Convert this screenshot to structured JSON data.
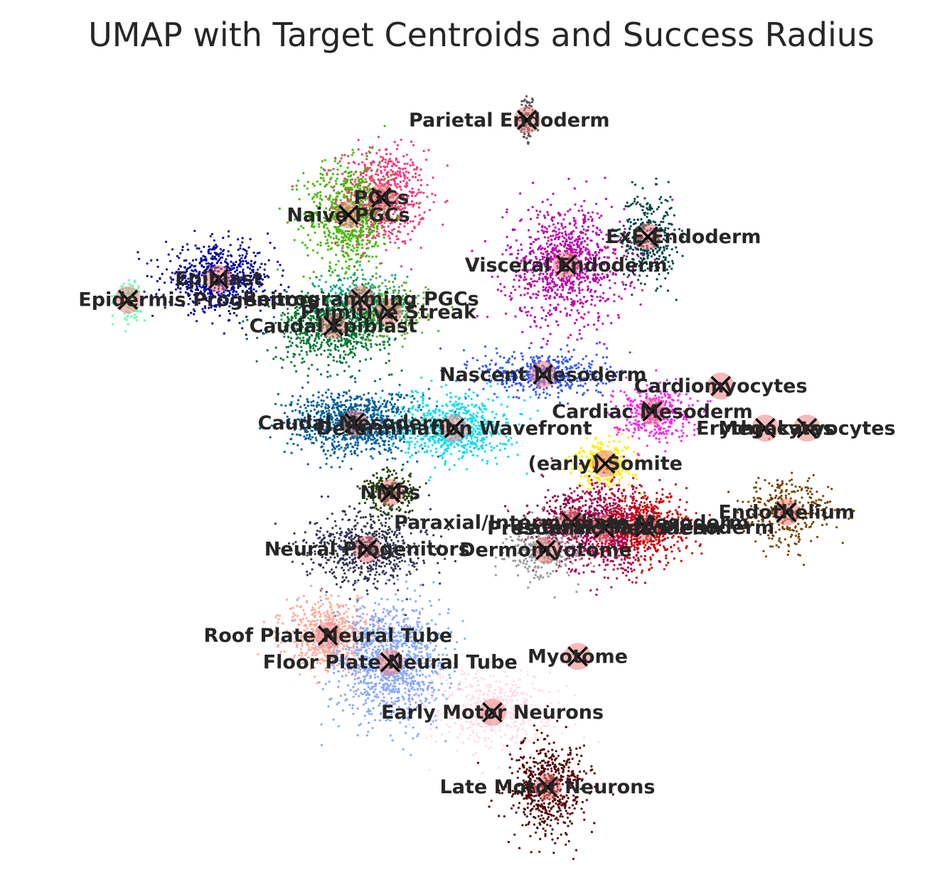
{
  "chart_data": {
    "type": "scatter",
    "title": "UMAP with Target Centroids and Success Radius",
    "xlabel": "",
    "ylabel": "",
    "axes_visible": false,
    "grid": false,
    "legend": "none",
    "xlim": [
      0,
      100
    ],
    "ylim": [
      0,
      100
    ],
    "centroid_marker": "x",
    "centroid_color": "#000000",
    "radius_color": "#f08080",
    "clusters": [
      {
        "name": "Parietal Endoderm",
        "x": 56.9,
        "y": 96.2,
        "color": "#555555",
        "spread": [
          0.8,
          3.5
        ],
        "n": 80,
        "label_dx": -2.0
      },
      {
        "name": "PGCs",
        "x": 40.5,
        "y": 85.5,
        "color": "#ff3377",
        "spread": [
          4.5,
          6.0
        ],
        "n": 700,
        "label_dx": 0.0
      },
      {
        "name": "Naive PGCs",
        "x": 36.8,
        "y": 83.1,
        "color": "#44bb00",
        "spread": [
          4.5,
          6.5
        ],
        "n": 650,
        "label_dx": 0.0
      },
      {
        "name": "ExE Endoderm",
        "x": 70.5,
        "y": 80.1,
        "color": "#004444",
        "spread": [
          2.8,
          5.5
        ],
        "n": 350,
        "label_dx": 4.0
      },
      {
        "name": "Visceral Endoderm",
        "x": 61.3,
        "y": 76.2,
        "color": "#bb00aa",
        "spread": [
          6.0,
          7.5
        ],
        "n": 900,
        "label_dx": 0.0
      },
      {
        "name": "Epiblast",
        "x": 22.2,
        "y": 74.3,
        "color": "#000099",
        "spread": [
          5.5,
          4.0
        ],
        "n": 650,
        "label_dx": 0.0
      },
      {
        "name": "Epidermis Progenitors",
        "x": 12.0,
        "y": 71.4,
        "color": "#66ffaa",
        "spread": [
          1.3,
          2.5
        ],
        "n": 120,
        "label_dx": 8.0
      },
      {
        "name": "Reprogramming PGCs",
        "x": 38.2,
        "y": 71.5,
        "color": "#11aa88",
        "spread": [
          4.5,
          3.5
        ],
        "n": 250,
        "label_dx": 0.0
      },
      {
        "name": "Primitive Streak",
        "x": 41.3,
        "y": 69.7,
        "color": "#66aa33",
        "spread": [
          4.0,
          3.5
        ],
        "n": 250,
        "label_dx": 0.0
      },
      {
        "name": "Caudal Epiblast",
        "x": 35.1,
        "y": 67.8,
        "color": "#007733",
        "spread": [
          6.0,
          4.5
        ],
        "n": 750,
        "label_dx": 0.0
      },
      {
        "name": "Nascent Mesoderm",
        "x": 58.7,
        "y": 61.1,
        "color": "#3355ff",
        "spread": [
          6.5,
          3.0
        ],
        "n": 450,
        "label_dx": 0.0
      },
      {
        "name": "Cardiomyocytes",
        "x": 78.7,
        "y": 59.5,
        "color": "#ff99bb",
        "spread": [
          0.3,
          0.3
        ],
        "n": 4,
        "label_dx": 0.0
      },
      {
        "name": "Cardiac Mesoderm",
        "x": 71.0,
        "y": 56.0,
        "color": "#ff22ee",
        "spread": [
          4.0,
          3.5
        ],
        "n": 350,
        "label_dx": 0.0
      },
      {
        "name": "Erythrocytes",
        "x": 83.7,
        "y": 53.7,
        "color": "#aa8844",
        "spread": [
          0.8,
          0.8
        ],
        "n": 15,
        "label_dx": 0.0
      },
      {
        "name": "Megakaryocytes",
        "x": 88.4,
        "y": 53.7,
        "color": "#ff99bb",
        "spread": [
          0.3,
          0.3
        ],
        "n": 3,
        "label_dx": 0.0
      },
      {
        "name": "Caudal Mesoderm",
        "x": 37.5,
        "y": 54.4,
        "color": "#005f99",
        "spread": [
          6.5,
          4.0
        ],
        "n": 950,
        "label_dx": 0.0
      },
      {
        "name": "Determination Wavefront",
        "x": 48.7,
        "y": 53.7,
        "color": "#11ddee",
        "spread": [
          5.5,
          4.0
        ],
        "n": 650,
        "label_dx": 0.0
      },
      {
        "name": "(early) Somite",
        "x": 65.7,
        "y": 48.8,
        "color": "#ffee00",
        "spread": [
          3.0,
          3.0
        ],
        "n": 300,
        "label_dx": 0.0
      },
      {
        "name": "NMPs",
        "x": 41.5,
        "y": 44.8,
        "color": "#224400",
        "spread": [
          3.0,
          3.0
        ],
        "n": 220,
        "label_dx": 0.0
      },
      {
        "name": "Endothelium",
        "x": 86.1,
        "y": 42.1,
        "color": "#774400",
        "spread": [
          4.5,
          4.5
        ],
        "n": 320,
        "label_dx": 0.0
      },
      {
        "name": "Paraxial/Intermediate Mesoderm",
        "x": 61.9,
        "y": 40.7,
        "color": "#770033",
        "spread": [
          5.0,
          3.0
        ],
        "n": 300,
        "label_dx": 0.0
      },
      {
        "name": "Presomitic Mesoderm",
        "x": 65.6,
        "y": 39.9,
        "color": "#aa0055",
        "spread": [
          5.0,
          5.5
        ],
        "n": 750,
        "label_dx": 0.0
      },
      {
        "name": "Lateral Plate Mesoderm",
        "x": 70.2,
        "y": 40.0,
        "color": "#cc0000",
        "spread": [
          4.5,
          4.5
        ],
        "n": 550,
        "label_dx": 0.0
      },
      {
        "name": "Neural Progenitors",
        "x": 38.9,
        "y": 37.0,
        "color": "#333355",
        "spread": [
          6.0,
          4.5
        ],
        "n": 650,
        "label_dx": 0.0
      },
      {
        "name": "Dermomyotome",
        "x": 59.0,
        "y": 36.9,
        "color": "#999999",
        "spread": [
          4.0,
          3.5
        ],
        "n": 300,
        "label_dx": 0.0
      },
      {
        "name": "Roof Plate Neural Tube",
        "x": 34.5,
        "y": 25.1,
        "color": "#ffaa99",
        "spread": [
          4.5,
          4.5
        ],
        "n": 550,
        "label_dx": 0.0
      },
      {
        "name": "Myotome",
        "x": 62.6,
        "y": 22.2,
        "color": "#ff99bb",
        "spread": [
          0.3,
          0.3
        ],
        "n": 4,
        "label_dx": 0.0
      },
      {
        "name": "Floor Plate Neural Tube",
        "x": 41.5,
        "y": 21.4,
        "color": "#88aaff",
        "spread": [
          5.5,
          7.5
        ],
        "n": 1100,
        "label_dx": 0.0
      },
      {
        "name": "Early Motor Neurons",
        "x": 53.0,
        "y": 14.5,
        "color": "#ffdde6",
        "spread": [
          7.0,
          5.0
        ],
        "n": 500,
        "label_dx": 0.0
      },
      {
        "name": "Late Motor Neurons",
        "x": 59.2,
        "y": 4.2,
        "color": "#550000",
        "spread": [
          4.0,
          6.0
        ],
        "n": 600,
        "label_dx": 0.0
      }
    ]
  }
}
